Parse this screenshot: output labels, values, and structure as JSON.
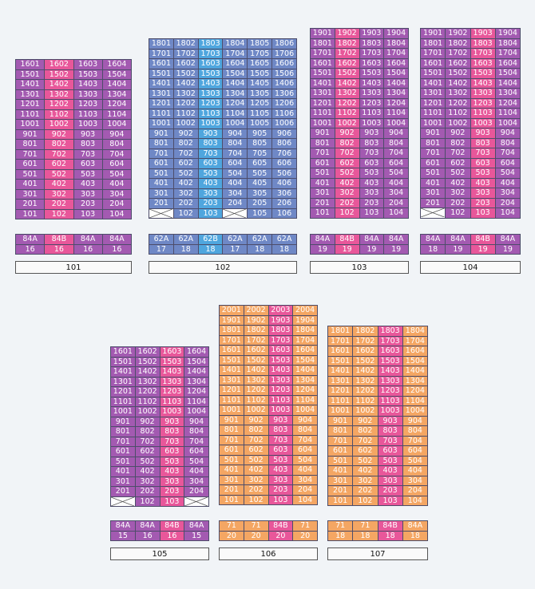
{
  "colors": {
    "purple": "#a35ab1",
    "pink": "#e8579a",
    "blue": "#6f88c6",
    "lightblue": "#4fa6de",
    "orange": "#f4a663"
  },
  "buildings": [
    {
      "id": "b101",
      "label": "101",
      "color": "purple",
      "highlight": "pink",
      "cols": 4,
      "floors": [
        16,
        15,
        14,
        13,
        12,
        11,
        10,
        9,
        8,
        7,
        6,
        5,
        4,
        3,
        2,
        1
      ],
      "hcols": [
        1
      ],
      "empty": {},
      "types": [
        "84A",
        "84B",
        "84A",
        "84A"
      ],
      "counts": [
        "16",
        "16",
        "16",
        "16"
      ],
      "hinfo": [
        1
      ]
    },
    {
      "id": "b102",
      "label": "102",
      "color": "blue",
      "highlight": "lightblue",
      "cols": 6,
      "floors": [
        18,
        17,
        16,
        15,
        14,
        13,
        12,
        11,
        10,
        9,
        8,
        7,
        6,
        5,
        4,
        3,
        2,
        1
      ],
      "hcols": [
        2
      ],
      "empty": {
        "1": [
          0,
          3
        ]
      },
      "types": [
        "62A",
        "62A",
        "62B",
        "62A",
        "62A",
        "62A"
      ],
      "counts": [
        "17",
        "18",
        "18",
        "17",
        "18",
        "18"
      ],
      "hinfo": [
        2
      ]
    },
    {
      "id": "b103",
      "label": "103",
      "color": "purple",
      "highlight": "pink",
      "cols": 4,
      "floors": [
        19,
        18,
        17,
        16,
        15,
        14,
        13,
        12,
        11,
        10,
        9,
        8,
        7,
        6,
        5,
        4,
        3,
        2,
        1
      ],
      "hcols": [
        1
      ],
      "empty": {},
      "types": [
        "84A",
        "84B",
        "84A",
        "84A"
      ],
      "counts": [
        "19",
        "19",
        "19",
        "19"
      ],
      "hinfo": [
        1
      ]
    },
    {
      "id": "b104",
      "label": "104",
      "color": "purple",
      "highlight": "pink",
      "cols": 4,
      "floors": [
        19,
        18,
        17,
        16,
        15,
        14,
        13,
        12,
        11,
        10,
        9,
        8,
        7,
        6,
        5,
        4,
        3,
        2,
        1
      ],
      "hcols": [
        2
      ],
      "empty": {
        "1": [
          0
        ]
      },
      "types": [
        "84A",
        "84A",
        "84B",
        "84A"
      ],
      "counts": [
        "18",
        "19",
        "19",
        "19"
      ],
      "hinfo": [
        2
      ]
    },
    {
      "id": "b105",
      "label": "105",
      "color": "purple",
      "highlight": "pink",
      "cols": 4,
      "floors": [
        16,
        15,
        14,
        13,
        12,
        11,
        10,
        9,
        8,
        7,
        6,
        5,
        4,
        3,
        2,
        1
      ],
      "hcols": [
        2
      ],
      "empty": {
        "1": [
          0,
          3
        ]
      },
      "types": [
        "84A",
        "84A",
        "84B",
        "84A"
      ],
      "counts": [
        "15",
        "16",
        "16",
        "15"
      ],
      "hinfo": [
        2
      ]
    },
    {
      "id": "b106",
      "label": "106",
      "color": "orange",
      "highlight": "pink",
      "cols": 4,
      "floors": [
        20,
        19,
        18,
        17,
        16,
        15,
        14,
        13,
        12,
        11,
        10,
        9,
        8,
        7,
        6,
        5,
        4,
        3,
        2,
        1
      ],
      "hcols": [
        2
      ],
      "empty": {},
      "types": [
        "71",
        "71",
        "84B",
        "71"
      ],
      "counts": [
        "20",
        "20",
        "20",
        "20"
      ],
      "hinfo": [
        2
      ]
    },
    {
      "id": "b107",
      "label": "107",
      "color": "orange",
      "highlight": "pink",
      "cols": 4,
      "floors": [
        18,
        17,
        16,
        15,
        14,
        13,
        12,
        11,
        10,
        9,
        8,
        7,
        6,
        5,
        4,
        3,
        2,
        1
      ],
      "hcols": [
        2
      ],
      "empty": {},
      "types": [
        "71",
        "71",
        "84B",
        "84A"
      ],
      "counts": [
        "18",
        "18",
        "18",
        "18"
      ],
      "hinfo": [
        2
      ]
    }
  ]
}
